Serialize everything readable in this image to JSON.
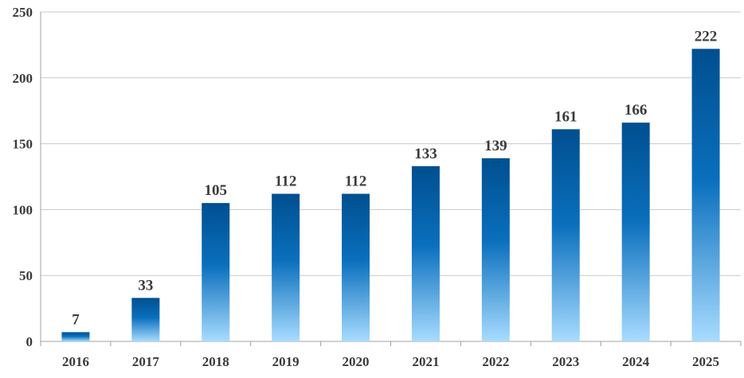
{
  "chart_data": {
    "type": "bar",
    "categories": [
      "2016",
      "2017",
      "2018",
      "2019",
      "2020",
      "2021",
      "2022",
      "2023",
      "2024",
      "2025"
    ],
    "values": [
      7,
      33,
      105,
      112,
      112,
      133,
      139,
      161,
      166,
      222
    ],
    "data_labels": [
      "7",
      "33",
      "105",
      "112",
      "112",
      "133",
      "139",
      "161",
      "166",
      "222"
    ],
    "y_ticks": [
      0,
      50,
      100,
      150,
      200,
      250
    ],
    "ylim": [
      0,
      250
    ],
    "grid": true,
    "legend": "none",
    "colors": {
      "bar_top": "#004f8f",
      "bar_mid": "#0a6fbd",
      "bar_bottom": "#a8dcff",
      "grid": "#c8c8c8",
      "axis": "#a0a0a0",
      "text": "#3a3a3a"
    }
  }
}
